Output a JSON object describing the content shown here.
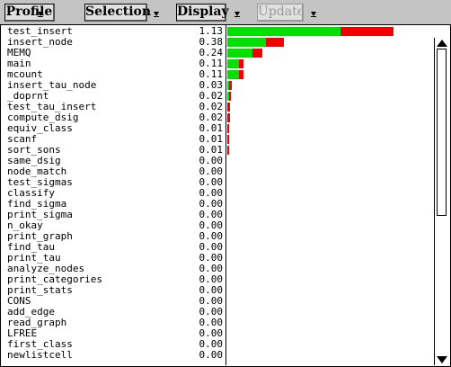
{
  "menubar": {
    "buttons": [
      {
        "label": "Profile",
        "disabled": false
      },
      {
        "label": "Selection",
        "disabled": false
      },
      {
        "label": "Display",
        "disabled": false
      },
      {
        "label": "Update",
        "disabled": true
      }
    ]
  },
  "colors": {
    "green": "#00e000",
    "red": "#ee0000"
  },
  "scale_max": 1.13,
  "rows": [
    {
      "name": "test_insert",
      "value": "1.13",
      "green": 0.77,
      "red": 0.36
    },
    {
      "name": "insert_node",
      "value": "0.38",
      "green": 0.26,
      "red": 0.12
    },
    {
      "name": "MEMQ",
      "value": "0.24",
      "green": 0.17,
      "red": 0.07
    },
    {
      "name": "main",
      "value": "0.11",
      "green": 0.08,
      "red": 0.03
    },
    {
      "name": "mcount",
      "value": "0.11",
      "green": 0.08,
      "red": 0.03
    },
    {
      "name": "insert_tau_node",
      "value": "0.03",
      "green": 0.01,
      "red": 0.02
    },
    {
      "name": "_doprnt",
      "value": "0.02",
      "green": 0.01,
      "red": 0.01
    },
    {
      "name": "test_tau_insert",
      "value": "0.02",
      "green": 0.0,
      "red": 0.02
    },
    {
      "name": "compute_dsig",
      "value": "0.02",
      "green": 0.0,
      "red": 0.02
    },
    {
      "name": "equiv_class",
      "value": "0.01",
      "green": 0.0,
      "red": 0.01
    },
    {
      "name": "scanf",
      "value": "0.01",
      "green": 0.0,
      "red": 0.01
    },
    {
      "name": "sort_sons",
      "value": "0.01",
      "green": 0.0,
      "red": 0.01
    },
    {
      "name": "same_dsig",
      "value": "0.00",
      "green": 0,
      "red": 0
    },
    {
      "name": "node_match",
      "value": "0.00",
      "green": 0,
      "red": 0
    },
    {
      "name": "test_sigmas",
      "value": "0.00",
      "green": 0,
      "red": 0
    },
    {
      "name": "classify",
      "value": "0.00",
      "green": 0,
      "red": 0
    },
    {
      "name": "find_sigma",
      "value": "0.00",
      "green": 0,
      "red": 0
    },
    {
      "name": "print_sigma",
      "value": "0.00",
      "green": 0,
      "red": 0
    },
    {
      "name": "n_okay",
      "value": "0.00",
      "green": 0,
      "red": 0
    },
    {
      "name": "print_graph",
      "value": "0.00",
      "green": 0,
      "red": 0
    },
    {
      "name": "find_tau",
      "value": "0.00",
      "green": 0,
      "red": 0
    },
    {
      "name": "print_tau",
      "value": "0.00",
      "green": 0,
      "red": 0
    },
    {
      "name": "analyze_nodes",
      "value": "0.00",
      "green": 0,
      "red": 0
    },
    {
      "name": "print_categories",
      "value": "0.00",
      "green": 0,
      "red": 0
    },
    {
      "name": "print_stats",
      "value": "0.00",
      "green": 0,
      "red": 0
    },
    {
      "name": "CONS",
      "value": "0.00",
      "green": 0,
      "red": 0
    },
    {
      "name": "add_edge",
      "value": "0.00",
      "green": 0,
      "red": 0
    },
    {
      "name": "read_graph",
      "value": "0.00",
      "green": 0,
      "red": 0
    },
    {
      "name": "LFREE",
      "value": "0.00",
      "green": 0,
      "red": 0
    },
    {
      "name": "first_class",
      "value": "0.00",
      "green": 0,
      "red": 0
    },
    {
      "name": "newlistcell",
      "value": "0.00",
      "green": 0,
      "red": 0
    }
  ]
}
